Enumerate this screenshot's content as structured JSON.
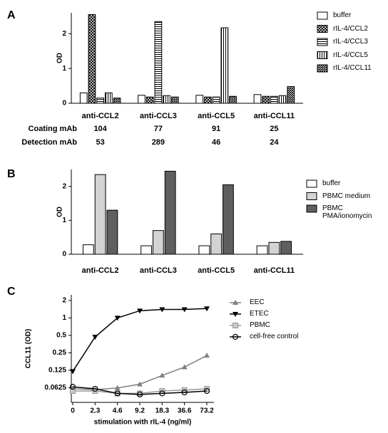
{
  "chart_data": [
    {
      "type": "bar",
      "label": "A",
      "ylabel": "OD",
      "categories": [
        "anti-CCL2",
        "anti-CCL3",
        "anti-CCL5",
        "anti-CCL11"
      ],
      "series": [
        {
          "name": "buffer",
          "color": "#ffffff",
          "pattern": "none",
          "values": [
            0.3,
            0.23,
            0.23,
            0.25
          ]
        },
        {
          "name": "rIL-4/CCL2",
          "color": "#000000",
          "pattern": "crosshatch",
          "values": [
            2.55,
            0.18,
            0.18,
            0.2
          ]
        },
        {
          "name": "rIL-4/CCL3",
          "color": "#000000",
          "pattern": "horizontal",
          "values": [
            0.15,
            2.35,
            0.18,
            0.2
          ]
        },
        {
          "name": "rIL-4/CCL5",
          "color": "#000000",
          "pattern": "vertical",
          "values": [
            0.3,
            0.22,
            2.17,
            0.22
          ]
        },
        {
          "name": "rIL-4/CCL11",
          "color": "#000000",
          "pattern": "diagonal",
          "values": [
            0.15,
            0.18,
            0.2,
            0.48
          ]
        }
      ],
      "ylim": [
        0,
        2.6
      ],
      "yticks": [
        0,
        1,
        2
      ],
      "table_rows": [
        {
          "label": "Coating mAb",
          "values": [
            104,
            77,
            91,
            25
          ]
        },
        {
          "label": "Detection mAb",
          "values": [
            53,
            289,
            46,
            24
          ]
        }
      ]
    },
    {
      "type": "bar",
      "label": "B",
      "ylabel": "OD",
      "categories": [
        "anti-CCL2",
        "anti-CCL3",
        "anti-CCL5",
        "anti-CCL11"
      ],
      "series": [
        {
          "name": "buffer",
          "color": "#ffffff",
          "values": [
            0.28,
            0.25,
            0.25,
            0.25
          ]
        },
        {
          "name": "PBMC medium",
          "color": "#d3d3d3",
          "values": [
            2.35,
            0.7,
            0.6,
            0.35
          ]
        },
        {
          "name": "PBMC PMA/ionomycin",
          "color": "#5f5f5f",
          "values": [
            1.3,
            2.45,
            2.05,
            0.38
          ]
        }
      ],
      "ylim": [
        0,
        2.5
      ],
      "yticks": [
        0,
        1,
        2
      ]
    },
    {
      "type": "line",
      "label": "C",
      "ylabel": "CCL11  (OD)",
      "xlabel": "stimulation with rIL-4 (ng/ml)",
      "categories": [
        "0",
        "2.3",
        "4.6",
        "9.2",
        "18.3",
        "36.6",
        "73.2"
      ],
      "series": [
        {
          "name": "EEC",
          "color": "#808080",
          "marker": "triangle-up",
          "values": [
            0.06,
            0.058,
            0.062,
            0.072,
            0.102,
            0.142,
            0.225
          ]
        },
        {
          "name": "ETEC",
          "color": "#000000",
          "marker": "triangle-down",
          "values": [
            0.12,
            0.47,
            1.0,
            1.33,
            1.4,
            1.4,
            1.45
          ]
        },
        {
          "name": "PBMC",
          "color": "#999999",
          "marker": "square",
          "values": [
            0.055,
            0.055,
            0.05,
            0.05,
            0.055,
            0.057,
            0.06
          ]
        },
        {
          "name": "cell-free control",
          "color": "#000000",
          "marker": "circle",
          "values": [
            0.065,
            0.06,
            0.05,
            0.048,
            0.05,
            0.052,
            0.055
          ]
        }
      ],
      "yscale": "log",
      "ylim": [
        0.035,
        2.5
      ],
      "yticks": [
        0.0625,
        0.125,
        0.25,
        0.5,
        1,
        2
      ]
    }
  ]
}
